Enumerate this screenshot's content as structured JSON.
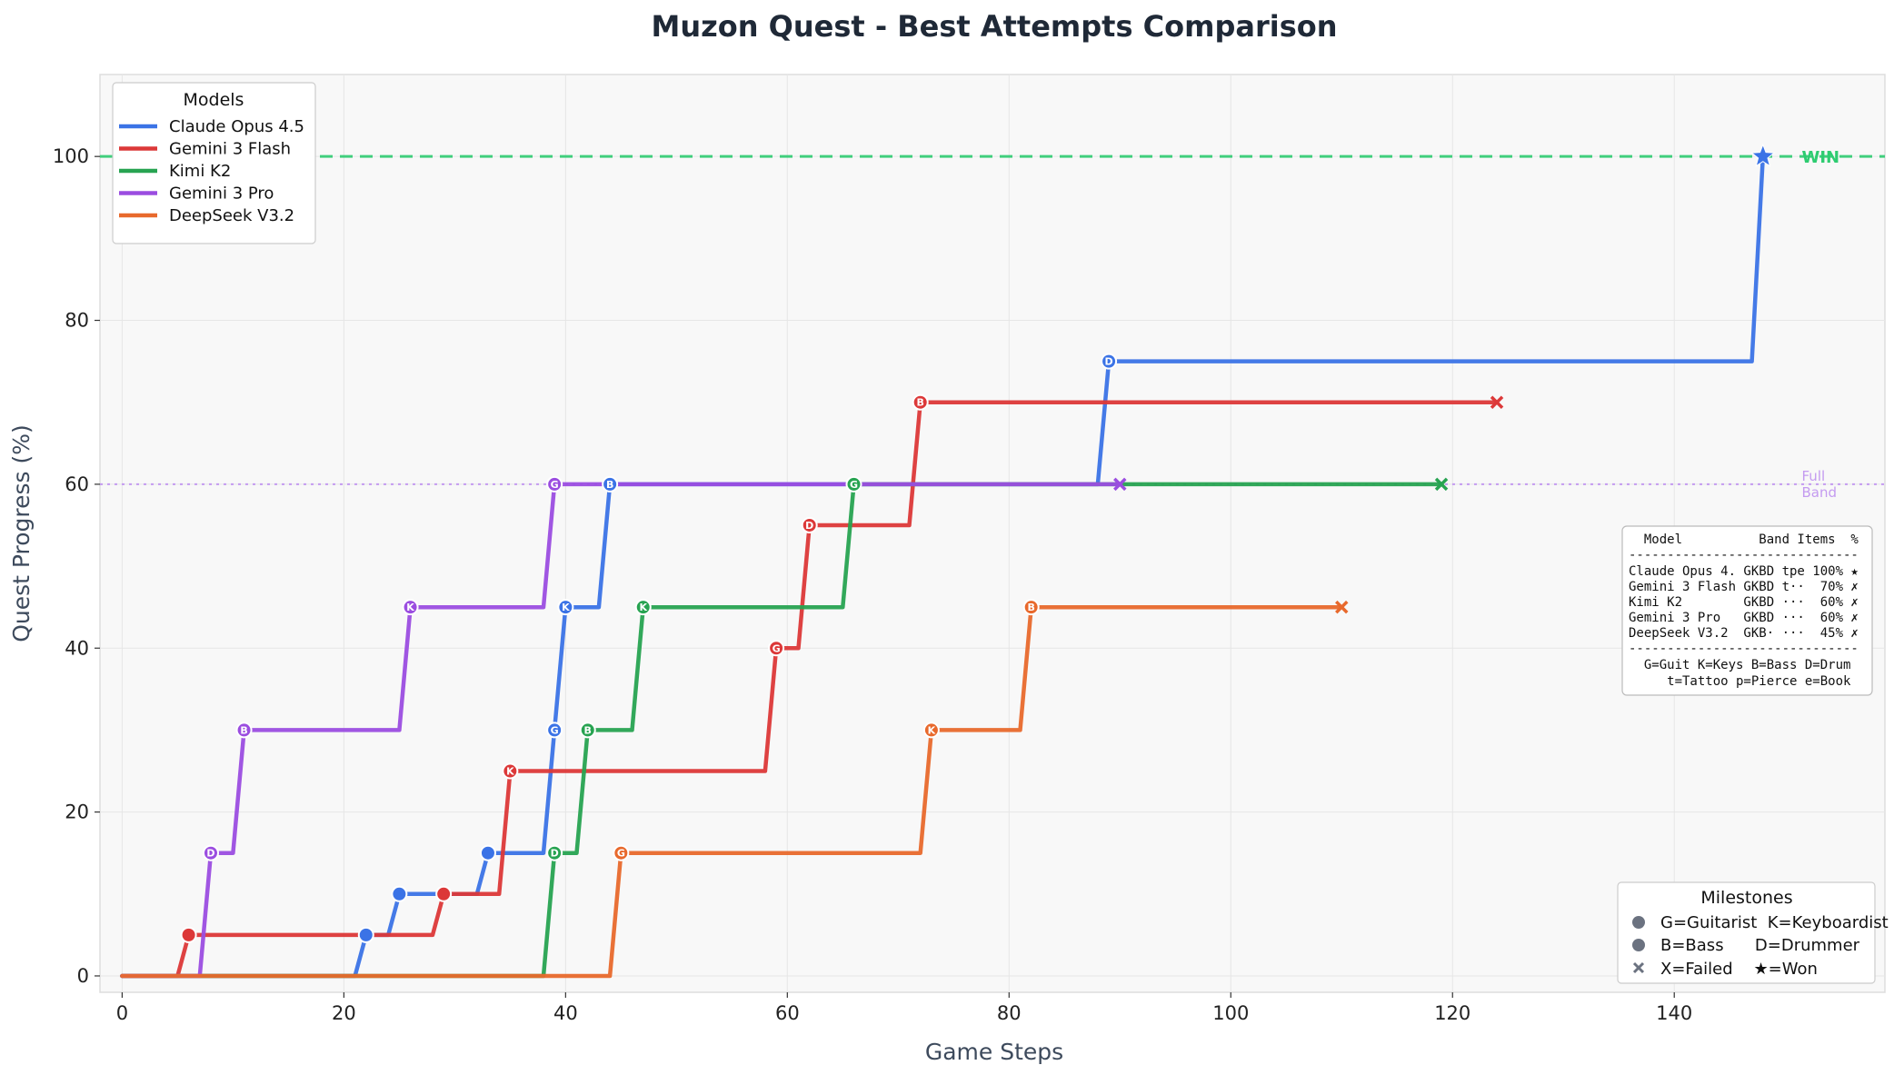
{
  "chart_data": {
    "type": "line",
    "title": "Muzon Quest - Best Attempts Comparison",
    "xlabel": "Game Steps",
    "ylabel": "Quest Progress (%)",
    "xlim": [
      -2,
      159
    ],
    "ylim": [
      -2,
      110
    ],
    "xticks": [
      0,
      20,
      40,
      60,
      80,
      100,
      120,
      140
    ],
    "yticks": [
      0,
      20,
      40,
      60,
      80,
      100
    ],
    "grid": true,
    "reference_lines": [
      {
        "y": 100,
        "label": "WIN",
        "color": "#2ecc71",
        "style": "dashed"
      },
      {
        "y": 60,
        "label_lines": [
          "Full",
          "Band"
        ],
        "color": "#c49bf0",
        "style": "dotted"
      }
    ],
    "legend_title": "Models",
    "legend_position": "top-left",
    "series": [
      {
        "name": "Claude Opus 4.5",
        "color": "#3b73e6",
        "points": [
          [
            0,
            0
          ],
          [
            21,
            0
          ],
          [
            22,
            5
          ],
          [
            24,
            5
          ],
          [
            25,
            10
          ],
          [
            32,
            10
          ],
          [
            33,
            15
          ],
          [
            38,
            15
          ],
          [
            39,
            30
          ],
          [
            40,
            45
          ],
          [
            43,
            45
          ],
          [
            44,
            60
          ],
          [
            88,
            60
          ],
          [
            89,
            75
          ],
          [
            147,
            75
          ],
          [
            148,
            100
          ]
        ],
        "milestones": [
          [
            22,
            5,
            "dot"
          ],
          [
            25,
            10,
            "dot"
          ],
          [
            33,
            15,
            "dot"
          ],
          [
            39,
            30,
            "G"
          ],
          [
            40,
            45,
            "K"
          ],
          [
            44,
            60,
            "B"
          ],
          [
            89,
            75,
            "D"
          ],
          [
            148,
            100,
            "star"
          ]
        ]
      },
      {
        "name": "Gemini 3 Flash",
        "color": "#dc3838",
        "points": [
          [
            0,
            0
          ],
          [
            5,
            0
          ],
          [
            6,
            5
          ],
          [
            28,
            5
          ],
          [
            29,
            10
          ],
          [
            34,
            10
          ],
          [
            35,
            25
          ],
          [
            58,
            25
          ],
          [
            59,
            40
          ],
          [
            61,
            40
          ],
          [
            62,
            55
          ],
          [
            71,
            55
          ],
          [
            72,
            70
          ],
          [
            124,
            70
          ]
        ],
        "milestones": [
          [
            6,
            5,
            "dot"
          ],
          [
            29,
            10,
            "dot"
          ],
          [
            35,
            25,
            "K"
          ],
          [
            59,
            40,
            "G"
          ],
          [
            62,
            55,
            "D"
          ],
          [
            72,
            70,
            "B"
          ],
          [
            124,
            70,
            "x"
          ]
        ]
      },
      {
        "name": "Kimi K2",
        "color": "#27a351",
        "points": [
          [
            0,
            0
          ],
          [
            38,
            0
          ],
          [
            39,
            15
          ],
          [
            41,
            15
          ],
          [
            42,
            30
          ],
          [
            46,
            30
          ],
          [
            47,
            45
          ],
          [
            65,
            45
          ],
          [
            66,
            60
          ],
          [
            119,
            60
          ]
        ],
        "milestones": [
          [
            39,
            15,
            "D"
          ],
          [
            42,
            30,
            "B"
          ],
          [
            47,
            45,
            "K"
          ],
          [
            66,
            60,
            "G"
          ],
          [
            119,
            60,
            "x"
          ]
        ]
      },
      {
        "name": "Gemini 3 Pro",
        "color": "#9b4de0",
        "points": [
          [
            0,
            0
          ],
          [
            7,
            0
          ],
          [
            8,
            15
          ],
          [
            10,
            15
          ],
          [
            11,
            30
          ],
          [
            25,
            30
          ],
          [
            26,
            45
          ],
          [
            38,
            45
          ],
          [
            39,
            60
          ],
          [
            90,
            60
          ]
        ],
        "milestones": [
          [
            8,
            15,
            "D"
          ],
          [
            11,
            30,
            "B"
          ],
          [
            26,
            45,
            "K"
          ],
          [
            39,
            60,
            "G"
          ],
          [
            90,
            60,
            "x"
          ]
        ]
      },
      {
        "name": "DeepSeek V3.2",
        "color": "#e8692c",
        "points": [
          [
            0,
            0
          ],
          [
            44,
            0
          ],
          [
            45,
            15
          ],
          [
            72,
            15
          ],
          [
            73,
            30
          ],
          [
            81,
            30
          ],
          [
            82,
            45
          ],
          [
            110,
            45
          ]
        ],
        "milestones": [
          [
            45,
            15,
            "G"
          ],
          [
            73,
            30,
            "K"
          ],
          [
            82,
            45,
            "B"
          ],
          [
            110,
            45,
            "x"
          ]
        ]
      }
    ],
    "summary_table": {
      "header": "  Model          Band Items  %",
      "separator": "------------------------------",
      "rows": [
        "Claude Opus 4. GKBD tpe 100% ★",
        "Gemini 3 Flash GKBD t··  70% ✗",
        "Kimi K2        GKBD ···  60% ✗",
        "Gemini 3 Pro   GKBD ···  60% ✗",
        "DeepSeek V3.2  GKB· ···  45% ✗"
      ],
      "footer": [
        "  G=Guit K=Keys B=Bass D=Drum",
        "     t=Tattoo p=Pierce e=Book"
      ]
    },
    "milestone_legend": {
      "title": "Milestones",
      "items": [
        {
          "marker": "dot",
          "text": "G=Guitarist  K=Keyboardist"
        },
        {
          "marker": "dot",
          "text": "B=Bass      D=Drummer"
        },
        {
          "marker": "x",
          "text": "X=Failed    ★=Won"
        }
      ]
    }
  }
}
